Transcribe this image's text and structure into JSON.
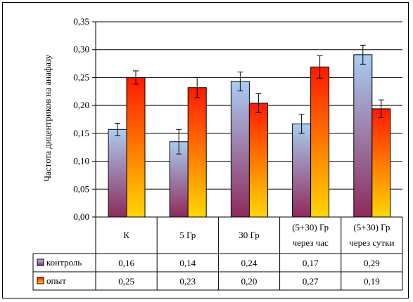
{
  "chart_data": {
    "type": "bar",
    "title": "",
    "xlabel": "",
    "ylabel": "Частота дицентриков на анафазу",
    "ylim": [
      0,
      0.35
    ],
    "yticks": [
      "0,00",
      "0,05",
      "0,10",
      "0,15",
      "0,20",
      "0,25",
      "0,30",
      "0,35"
    ],
    "grid": true,
    "categories": [
      [
        "К"
      ],
      [
        "5 Гр"
      ],
      [
        "30 Гр"
      ],
      [
        "(5+30) Гр",
        "через час"
      ],
      [
        "(5+30) Гр",
        "через сутки"
      ]
    ],
    "series": [
      {
        "name": "контроль",
        "values": [
          0.157,
          0.135,
          0.243,
          0.167,
          0.291
        ],
        "errors": [
          0.011,
          0.022,
          0.017,
          0.017,
          0.017
        ],
        "table_values": [
          "0,16",
          "0,14",
          "0,24",
          "0,17",
          "0,29"
        ],
        "gradient_top": "#a9cdf2",
        "gradient_bottom": "#8e2a5b"
      },
      {
        "name": "опыт",
        "values": [
          0.25,
          0.232,
          0.204,
          0.269,
          0.194
        ],
        "errors": [
          0.012,
          0.018,
          0.017,
          0.02,
          0.016
        ],
        "table_values": [
          "0,25",
          "0,23",
          "0,20",
          "0,27",
          "0,19"
        ],
        "gradient_top": "#ff1a00",
        "gradient_bottom": "#ffd700"
      }
    ],
    "legend_placement": "data-table"
  }
}
